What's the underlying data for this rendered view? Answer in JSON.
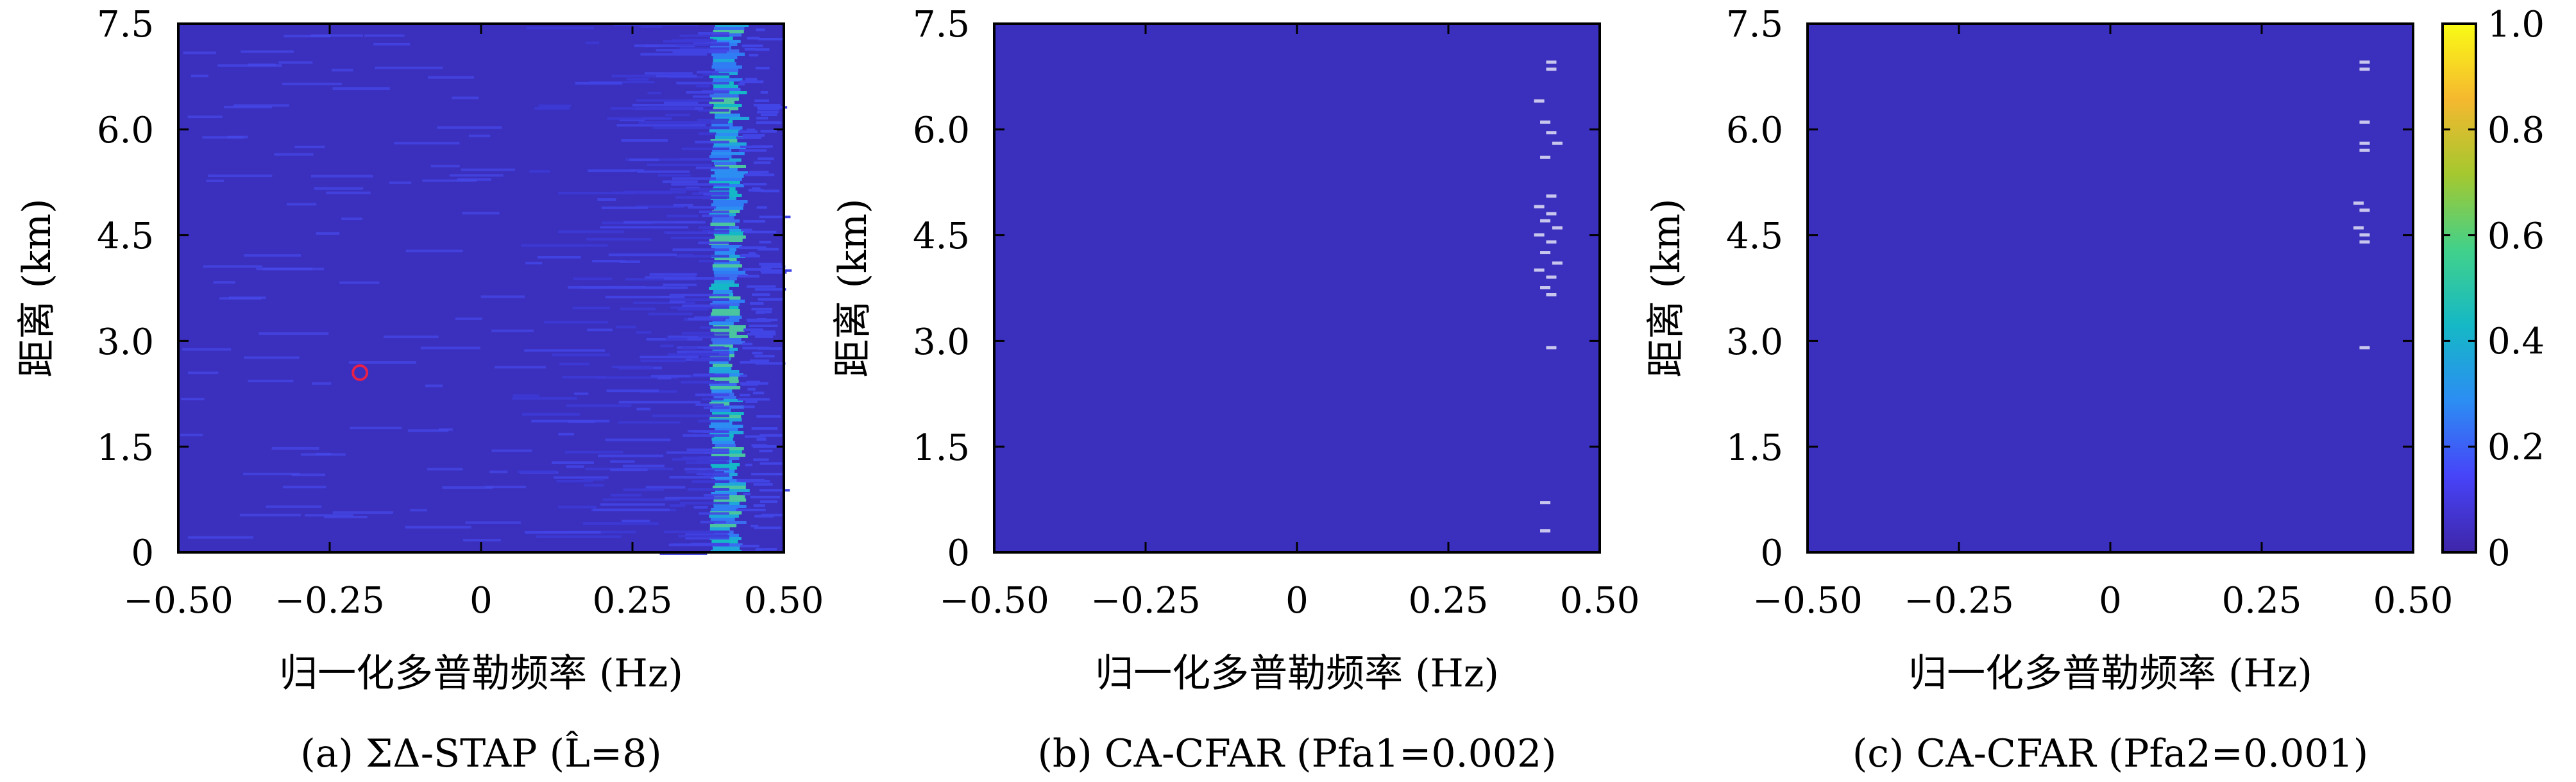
{
  "colors": {
    "background": "#3b2fbd",
    "frame": "#000000",
    "target_marker": "#e8204a",
    "colorbar_stops": [
      "#3e26a8",
      "#4743f8",
      "#2c8df3",
      "#15b8c6",
      "#41d18b",
      "#a4c82f",
      "#f5b82f",
      "#f9fb15"
    ]
  },
  "chart_data": [
    {
      "type": "heatmap",
      "id": "a",
      "caption": "(a) ΣΔ-STAP (L̂=8)",
      "xlabel": "归一化多普勒频率 (Hz)",
      "ylabel": "距离 (km)",
      "xlim": [
        -0.5,
        0.5
      ],
      "ylim": [
        0,
        7.5
      ],
      "xticks": [
        "−0.50",
        "−0.25",
        "0",
        "0.25",
        "0.50"
      ],
      "yticks": [
        "0",
        "1.5",
        "3.0",
        "4.5",
        "6.0",
        "7.5"
      ],
      "clutter_ridge_doppler": 0.41,
      "target": {
        "doppler": -0.2,
        "range_km": 2.55
      }
    },
    {
      "type": "heatmap",
      "id": "b",
      "caption": "(b) CA-CFAR (Pfa1=0.002)",
      "xlabel": "归一化多普勒频率 (Hz)",
      "ylabel": "距离 (km)",
      "xlim": [
        -0.5,
        0.5
      ],
      "ylim": [
        0,
        7.5
      ],
      "xticks": [
        "−0.50",
        "−0.25",
        "0",
        "0.25",
        "0.50"
      ],
      "yticks": [
        "0",
        "1.5",
        "3.0",
        "4.5",
        "6.0",
        "7.5"
      ],
      "detections": [
        {
          "doppler": 0.42,
          "range_km": 6.95
        },
        {
          "doppler": 0.42,
          "range_km": 6.85
        },
        {
          "doppler": 0.4,
          "range_km": 6.4
        },
        {
          "doppler": 0.41,
          "range_km": 6.1
        },
        {
          "doppler": 0.42,
          "range_km": 5.95
        },
        {
          "doppler": 0.43,
          "range_km": 5.8
        },
        {
          "doppler": 0.41,
          "range_km": 5.6
        },
        {
          "doppler": 0.42,
          "range_km": 5.05
        },
        {
          "doppler": 0.4,
          "range_km": 4.9
        },
        {
          "doppler": 0.42,
          "range_km": 4.8
        },
        {
          "doppler": 0.41,
          "range_km": 4.7
        },
        {
          "doppler": 0.43,
          "range_km": 4.6
        },
        {
          "doppler": 0.4,
          "range_km": 4.5
        },
        {
          "doppler": 0.42,
          "range_km": 4.4
        },
        {
          "doppler": 0.41,
          "range_km": 4.25
        },
        {
          "doppler": 0.43,
          "range_km": 4.1
        },
        {
          "doppler": 0.4,
          "range_km": 4.0
        },
        {
          "doppler": 0.42,
          "range_km": 3.9
        },
        {
          "doppler": 0.41,
          "range_km": 3.75
        },
        {
          "doppler": 0.42,
          "range_km": 3.65
        },
        {
          "doppler": 0.42,
          "range_km": 2.9
        },
        {
          "doppler": 0.41,
          "range_km": 0.7
        },
        {
          "doppler": 0.41,
          "range_km": 0.3
        }
      ]
    },
    {
      "type": "heatmap",
      "id": "c",
      "caption": "(c) CA-CFAR (Pfa2=0.001)",
      "xlabel": "归一化多普勒频率 (Hz)",
      "ylabel": "距离 (km)",
      "xlim": [
        -0.5,
        0.5
      ],
      "ylim": [
        0,
        7.5
      ],
      "xticks": [
        "−0.50",
        "−0.25",
        "0",
        "0.25",
        "0.50"
      ],
      "yticks": [
        "0",
        "1.5",
        "3.0",
        "4.5",
        "6.0",
        "7.5"
      ],
      "detections": [
        {
          "doppler": 0.42,
          "range_km": 6.95
        },
        {
          "doppler": 0.42,
          "range_km": 6.85
        },
        {
          "doppler": 0.42,
          "range_km": 6.1
        },
        {
          "doppler": 0.42,
          "range_km": 5.8
        },
        {
          "doppler": 0.42,
          "range_km": 5.7
        },
        {
          "doppler": 0.41,
          "range_km": 4.95
        },
        {
          "doppler": 0.42,
          "range_km": 4.85
        },
        {
          "doppler": 0.41,
          "range_km": 4.6
        },
        {
          "doppler": 0.42,
          "range_km": 4.5
        },
        {
          "doppler": 0.42,
          "range_km": 4.4
        },
        {
          "doppler": 0.42,
          "range_km": 2.9
        }
      ]
    }
  ],
  "colorbar": {
    "ticks": [
      "0",
      "0.2",
      "0.4",
      "0.6",
      "0.8",
      "1.0"
    ],
    "range": [
      0,
      1.0
    ]
  }
}
